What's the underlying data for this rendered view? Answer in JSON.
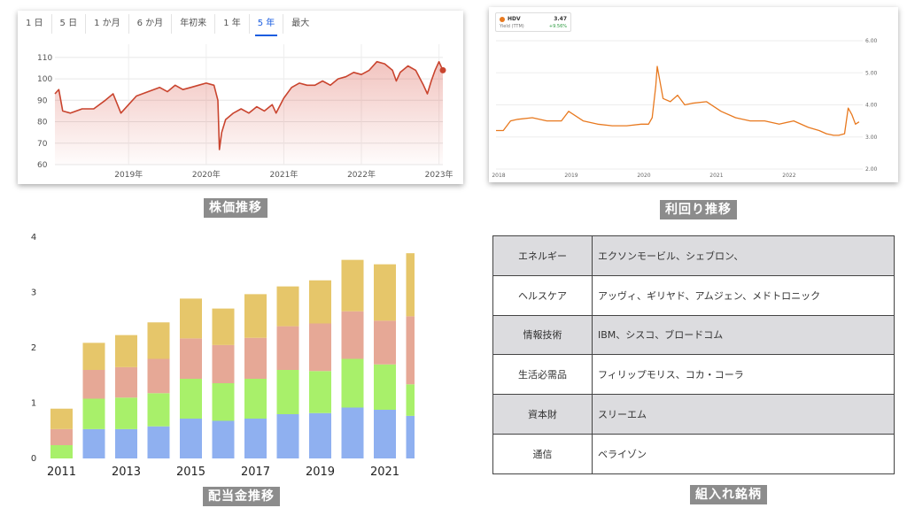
{
  "stock_panel": {
    "range_tabs": [
      "1 日",
      "5 日",
      "1 か月",
      "6 か月",
      "年初来",
      "1 年",
      "5 年",
      "最大"
    ],
    "active_tab": "5 年",
    "caption": "株価推移",
    "line_color": "#c9442e"
  },
  "yield_panel": {
    "caption": "利回り推移",
    "legend": {
      "name": "HDV",
      "value": "3.47",
      "sub": "Yield (TTM)",
      "change": "+9.56%"
    },
    "line_color": "#e8791f"
  },
  "dividend_panel": {
    "caption": "配当金推移",
    "colors": [
      "#8fb0f0",
      "#a8f06a",
      "#e6a896",
      "#e6c66a"
    ]
  },
  "holdings": {
    "caption": "組入れ銘柄",
    "rows": [
      {
        "sector": "エネルギー",
        "names": "エクソンモービル、シェブロン、"
      },
      {
        "sector": "ヘルスケア",
        "names": "アッヴィ、ギリヤド、アムジェン、メドトロニック"
      },
      {
        "sector": "情報技術",
        "names": "IBM、シスコ、ブロードコム"
      },
      {
        "sector": "生活必需品",
        "names": "フィリップモリス、コカ・コーラ"
      },
      {
        "sector": "資本財",
        "names": "スリーエム"
      },
      {
        "sector": "通信",
        "names": "ベライゾン"
      }
    ]
  },
  "chart_data": [
    {
      "type": "line",
      "title": "",
      "x_ticks": [
        "2019年",
        "2020年",
        "2021年",
        "2022年",
        "2023年"
      ],
      "y_ticks": [
        60,
        70,
        80,
        90,
        100,
        110
      ],
      "ylim": [
        60,
        112
      ],
      "xlim": [
        2018.05,
        2023.05
      ],
      "x": [
        2018.05,
        2018.1,
        2018.15,
        2018.25,
        2018.4,
        2018.55,
        2018.7,
        2018.8,
        2018.9,
        2019.0,
        2019.1,
        2019.25,
        2019.4,
        2019.5,
        2019.6,
        2019.7,
        2019.8,
        2019.9,
        2020.0,
        2020.1,
        2020.15,
        2020.17,
        2020.2,
        2020.25,
        2020.35,
        2020.45,
        2020.55,
        2020.65,
        2020.75,
        2020.85,
        2020.9,
        2021.0,
        2021.1,
        2021.2,
        2021.3,
        2021.4,
        2021.5,
        2021.6,
        2021.7,
        2021.8,
        2021.9,
        2022.0,
        2022.1,
        2022.2,
        2022.3,
        2022.4,
        2022.45,
        2022.5,
        2022.6,
        2022.7,
        2022.8,
        2022.85,
        2022.9,
        2022.95,
        2023.0,
        2023.05
      ],
      "y": [
        93,
        95,
        85,
        84,
        86,
        86,
        90,
        93,
        84,
        88,
        92,
        94,
        96,
        94,
        97,
        95,
        96,
        97,
        98,
        97,
        90,
        67,
        75,
        81,
        84,
        86,
        84,
        87,
        85,
        88,
        84,
        91,
        96,
        98,
        97,
        97,
        99,
        97,
        100,
        101,
        103,
        102,
        104,
        108,
        107,
        104,
        99,
        103,
        106,
        104,
        97,
        93,
        99,
        104,
        108,
        104
      ],
      "grid": true
    },
    {
      "type": "line",
      "title": "",
      "legend": "top-left",
      "x_ticks": [
        "2018",
        "2019",
        "2020",
        "2021",
        "2022"
      ],
      "y_ticks": [
        "2.00",
        "3.00",
        "4.00",
        "5.00",
        "6.00"
      ],
      "ylim": [
        2,
        6
      ],
      "xlim": [
        2018,
        2023.05
      ],
      "x": [
        2018.0,
        2018.1,
        2018.2,
        2018.3,
        2018.5,
        2018.7,
        2018.9,
        2019.0,
        2019.2,
        2019.4,
        2019.6,
        2019.8,
        2020.0,
        2020.1,
        2020.15,
        2020.2,
        2020.22,
        2020.3,
        2020.4,
        2020.5,
        2020.6,
        2020.7,
        2020.9,
        2021.1,
        2021.3,
        2021.5,
        2021.7,
        2021.9,
        2022.1,
        2022.3,
        2022.45,
        2022.55,
        2022.65,
        2022.72,
        2022.8,
        2022.85,
        2022.9,
        2022.95,
        2023.0
      ],
      "y": [
        3.2,
        3.2,
        3.5,
        3.55,
        3.6,
        3.5,
        3.5,
        3.8,
        3.5,
        3.4,
        3.35,
        3.35,
        3.4,
        3.4,
        3.6,
        4.6,
        5.2,
        4.2,
        4.1,
        4.3,
        4.0,
        4.05,
        4.1,
        3.8,
        3.6,
        3.5,
        3.5,
        3.4,
        3.5,
        3.3,
        3.2,
        3.1,
        3.05,
        3.05,
        3.1,
        3.9,
        3.7,
        3.4,
        3.47
      ],
      "grid": true
    },
    {
      "type": "bar",
      "stacked": true,
      "title": "",
      "categories": [
        "2011",
        "2012",
        "2013",
        "2014",
        "2015",
        "2016",
        "2017",
        "2018",
        "2019",
        "2020",
        "2021",
        "2022"
      ],
      "x_ticks": [
        "2011",
        "2013",
        "2015",
        "2017",
        "2019",
        "2021"
      ],
      "ylim": [
        0,
        4
      ],
      "y_ticks": [
        0,
        1,
        2,
        3,
        4
      ],
      "series": [
        {
          "values": [
            0.0,
            0.53,
            0.53,
            0.58,
            0.72,
            0.68,
            0.72,
            0.8,
            0.82,
            0.92,
            0.88,
            0.77
          ]
        },
        {
          "values": [
            0.24,
            0.55,
            0.57,
            0.6,
            0.72,
            0.68,
            0.72,
            0.8,
            0.76,
            0.88,
            0.82,
            0.57
          ]
        },
        {
          "values": [
            0.29,
            0.52,
            0.55,
            0.62,
            0.73,
            0.69,
            0.74,
            0.79,
            0.86,
            0.86,
            0.79,
            1.23
          ]
        },
        {
          "values": [
            0.37,
            0.49,
            0.58,
            0.66,
            0.72,
            0.66,
            0.79,
            0.72,
            0.78,
            0.93,
            1.02,
            1.14
          ]
        }
      ]
    }
  ]
}
